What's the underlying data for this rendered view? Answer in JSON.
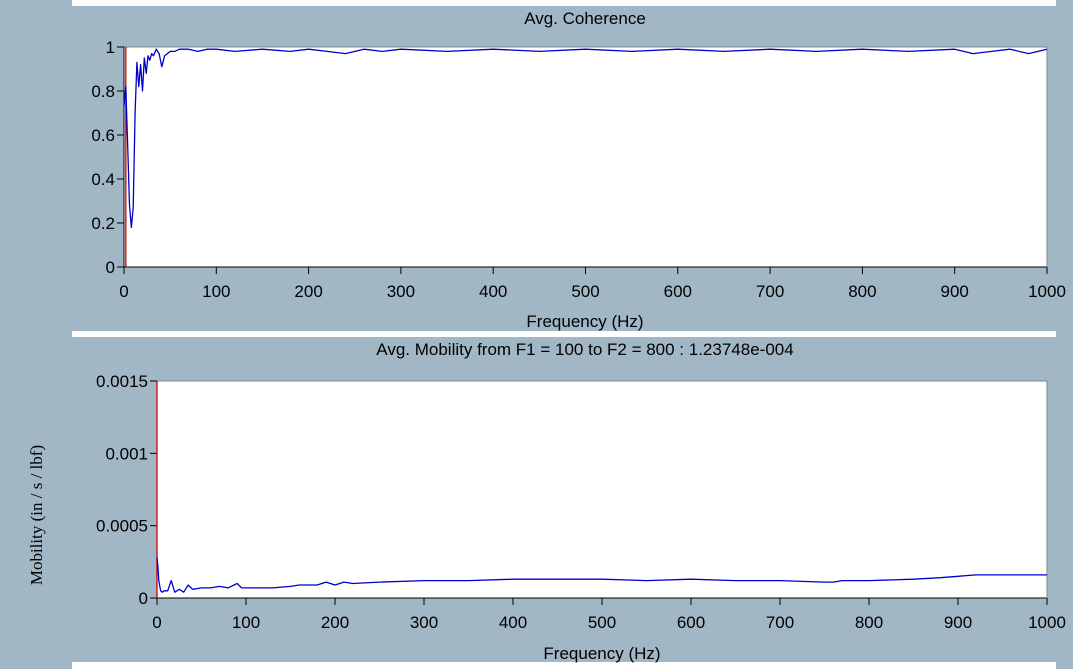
{
  "figure": {
    "background": "#a2b7c6",
    "y_axis_label": "Mobility (in / s / lbf)"
  },
  "chart_data": [
    {
      "type": "line",
      "title": "Avg. Coherence",
      "xlabel": "Frequency (Hz)",
      "ylabel": "",
      "xlim": [
        0,
        1000
      ],
      "ylim": [
        0,
        1
      ],
      "x_ticks": [
        0,
        100,
        200,
        300,
        400,
        500,
        600,
        700,
        800,
        900,
        1000
      ],
      "y_ticks": [
        0,
        0.2,
        0.4,
        0.6,
        0.8,
        1
      ],
      "y_tick_labels": [
        "0",
        "0.2",
        "0.4",
        "0.6",
        "0.8",
        "1"
      ],
      "grid": false,
      "cursor_x": 2,
      "series": [
        {
          "color": "#0000cc",
          "x": [
            0,
            2,
            4,
            6,
            8,
            10,
            12,
            14,
            16,
            18,
            20,
            22,
            24,
            26,
            28,
            30,
            32,
            35,
            38,
            41,
            44,
            47,
            50,
            55,
            60,
            70,
            80,
            90,
            100,
            120,
            150,
            180,
            200,
            220,
            240,
            260,
            280,
            300,
            350,
            400,
            450,
            500,
            550,
            600,
            650,
            700,
            750,
            800,
            850,
            900,
            920,
            940,
            960,
            980,
            1000
          ],
          "y": [
            0.73,
            0.82,
            0.55,
            0.28,
            0.18,
            0.27,
            0.7,
            0.93,
            0.82,
            0.92,
            0.8,
            0.95,
            0.88,
            0.96,
            0.94,
            0.97,
            0.96,
            0.99,
            0.97,
            0.91,
            0.96,
            0.97,
            0.98,
            0.98,
            0.99,
            0.99,
            0.98,
            0.99,
            0.99,
            0.98,
            0.99,
            0.98,
            0.99,
            0.98,
            0.97,
            0.99,
            0.98,
            0.99,
            0.98,
            0.99,
            0.98,
            0.99,
            0.98,
            0.99,
            0.98,
            0.99,
            0.98,
            0.99,
            0.98,
            0.99,
            0.97,
            0.98,
            0.99,
            0.97,
            0.99
          ]
        }
      ]
    },
    {
      "type": "line",
      "title": "Avg. Mobility from F1 = 100 to F2 = 800 : 1.23748e-004",
      "xlabel": "Frequency (Hz)",
      "ylabel": "Mobility (in / s / lbf)",
      "xlim": [
        0,
        1000
      ],
      "ylim": [
        0,
        0.0015
      ],
      "x_ticks": [
        0,
        100,
        200,
        300,
        400,
        500,
        600,
        700,
        800,
        900,
        1000
      ],
      "y_ticks": [
        0,
        0.0005,
        0.001,
        0.0015
      ],
      "y_tick_labels": [
        "0",
        "0.0005",
        "0.001",
        "0.0015"
      ],
      "grid": false,
      "cursor_x": 0,
      "series": [
        {
          "color": "#0000cc",
          "x": [
            0,
            1,
            2,
            4,
            6,
            8,
            12,
            16,
            20,
            25,
            30,
            35,
            40,
            50,
            60,
            70,
            80,
            90,
            95,
            100,
            130,
            150,
            160,
            180,
            190,
            200,
            210,
            220,
            250,
            300,
            350,
            400,
            450,
            500,
            550,
            600,
            650,
            700,
            750,
            760,
            770,
            800,
            850,
            880,
            900,
            920,
            950,
            1000
          ],
          "y": [
            0.00028,
            0.00022,
            0.00012,
            5e-05,
            4e-05,
            5e-05,
            5e-05,
            0.00012,
            4e-05,
            6e-05,
            4e-05,
            9e-05,
            6e-05,
            7e-05,
            7e-05,
            8e-05,
            7e-05,
            0.0001,
            7e-05,
            7e-05,
            7e-05,
            8e-05,
            9e-05,
            9e-05,
            0.00011,
            9e-05,
            0.00011,
            0.0001,
            0.00011,
            0.00012,
            0.00012,
            0.00013,
            0.00013,
            0.00013,
            0.00012,
            0.00013,
            0.00012,
            0.00012,
            0.00011,
            0.00011,
            0.00012,
            0.00012,
            0.00013,
            0.00014,
            0.00015,
            0.00016,
            0.00016,
            0.00016
          ]
        }
      ]
    }
  ],
  "colors": {
    "panel_bg": "#a2b7c6",
    "plot_bg": "#ffffff",
    "trace": "#0000cc",
    "cursor": "#cc0000",
    "axis": "#000000"
  }
}
